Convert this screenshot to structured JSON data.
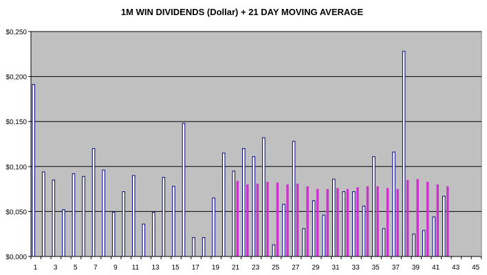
{
  "chart_data": {
    "type": "bar",
    "title": "1M WIN DIVIDENDS (Dollar) + 21 DAY MOVING AVERAGE",
    "xlabel": "",
    "ylabel": "",
    "ylim": [
      0,
      0.25
    ],
    "yticks": [
      0,
      0.05,
      0.1,
      0.15,
      0.2,
      0.25
    ],
    "ytick_labels": [
      "$0,000",
      "$0,050",
      "$0,100",
      "$0,150",
      "$0,200",
      "$0,250"
    ],
    "xlim": [
      1,
      45
    ],
    "xticks": [
      1,
      3,
      5,
      7,
      9,
      11,
      13,
      15,
      17,
      19,
      21,
      23,
      25,
      27,
      29,
      31,
      33,
      35,
      37,
      39,
      41,
      43,
      45
    ],
    "grid": "horizontal",
    "legend": "none",
    "colors": {
      "plot_background": "#c0c0c0",
      "dividends_fill": "#ffffff",
      "dividends_stroke": "#000080",
      "moving_average": "#cc33cc",
      "gridline": "#000000"
    },
    "x": [
      1,
      2,
      3,
      4,
      5,
      6,
      7,
      8,
      9,
      10,
      11,
      12,
      13,
      14,
      15,
      16,
      17,
      18,
      19,
      20,
      21,
      22,
      23,
      24,
      25,
      26,
      27,
      28,
      29,
      30,
      31,
      32,
      33,
      34,
      35,
      36,
      37,
      38,
      39,
      40,
      41,
      42
    ],
    "series": [
      {
        "values": [
          0.191,
          0.094,
          0.085,
          0.052,
          0.092,
          0.089,
          0.12,
          0.096,
          0.049,
          0.072,
          0.09,
          0.036,
          0.049,
          0.088,
          0.078,
          0.148,
          0.021,
          0.021,
          0.065,
          0.115,
          0.095,
          0.12,
          0.111,
          0.132,
          0.013,
          0.058,
          0.128,
          0.031,
          0.062,
          0.046,
          0.086,
          0.072,
          0.072,
          0.056,
          0.111,
          0.031,
          0.116,
          0.228,
          0.025,
          0.029,
          0.044,
          0.067
        ]
      },
      {
        "values": [
          null,
          null,
          null,
          null,
          null,
          null,
          null,
          null,
          null,
          null,
          null,
          null,
          null,
          null,
          null,
          null,
          null,
          null,
          null,
          null,
          0.084,
          0.08,
          0.081,
          0.083,
          0.082,
          0.08,
          0.081,
          0.078,
          0.075,
          0.075,
          0.076,
          0.075,
          0.077,
          0.078,
          0.078,
          0.076,
          0.075,
          0.085,
          0.086,
          0.083,
          0.08,
          0.078
        ]
      }
    ]
  }
}
